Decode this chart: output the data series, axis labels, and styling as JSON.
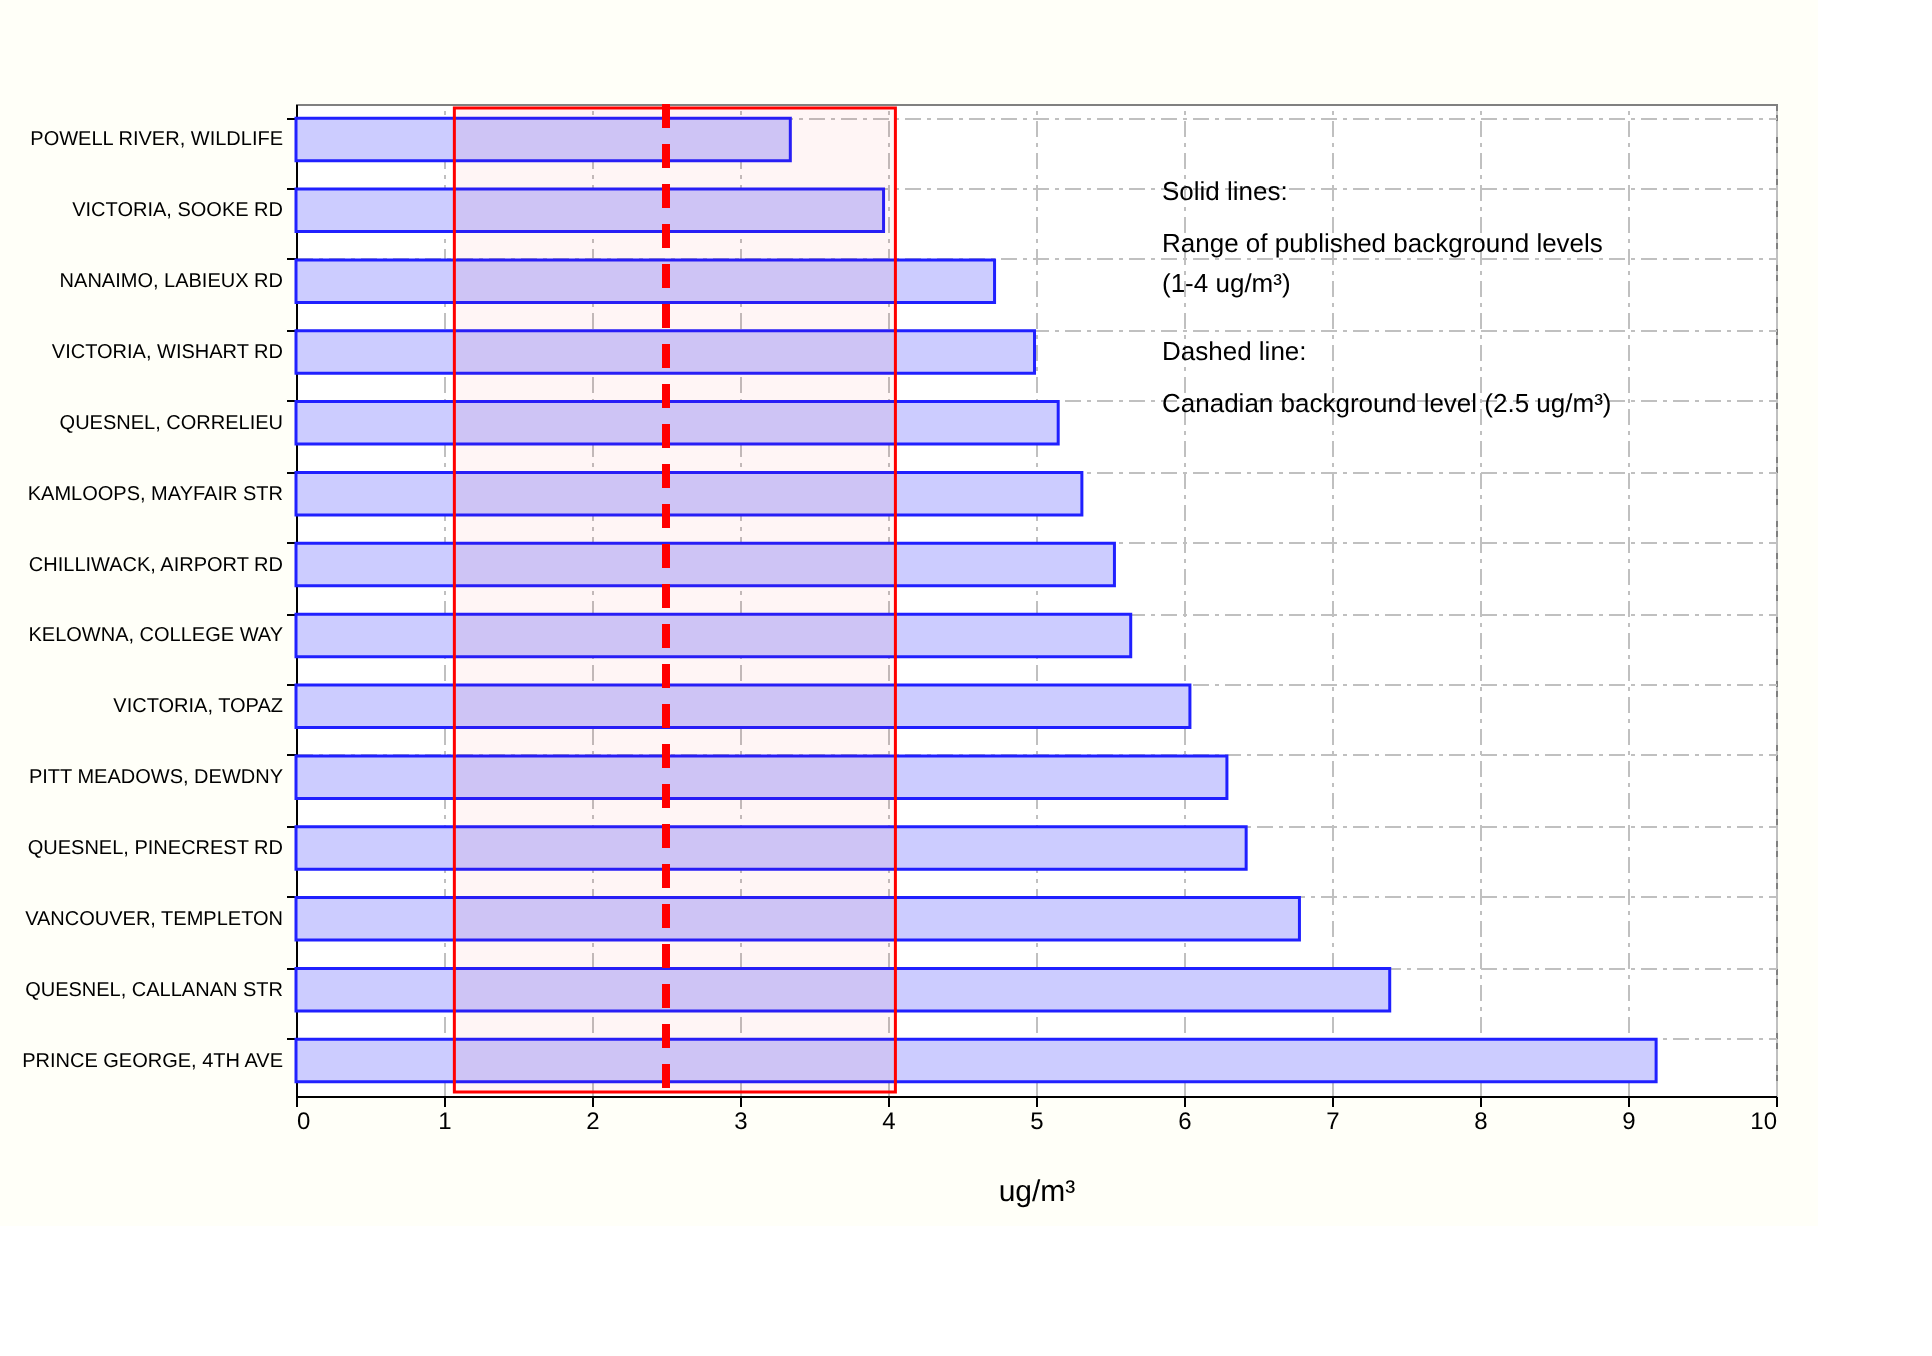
{
  "chart_data": {
    "type": "bar",
    "orientation": "horizontal",
    "xlabel": "ug/m³",
    "categories": [
      "POWELL RIVER, WILDLIFE",
      "VICTORIA, SOOKE RD",
      "NANAIMO, LABIEUX RD",
      "VICTORIA, WISHART RD",
      "QUESNEL, CORRELIEU",
      "KAMLOOPS, MAYFAIR STR",
      "CHILLIWACK, AIRPORT RD",
      "KELOWNA, COLLEGE WAY",
      "VICTORIA, TOPAZ",
      "PITT MEADOWS, DEWDNY",
      "QUESNEL, PINECREST RD",
      "VANCOUVER, TEMPLETON",
      "QUESNEL, CALLANAN STR",
      "PRINCE GEORGE, 4TH AVE"
    ],
    "values": [
      3.34,
      3.97,
      4.72,
      4.99,
      5.15,
      5.31,
      5.53,
      5.64,
      6.04,
      6.29,
      6.42,
      6.78,
      7.39,
      9.19
    ],
    "color": "#ccccff",
    "xlim": [
      0,
      10
    ],
    "xticks": [
      0,
      1,
      2,
      3,
      4,
      5,
      6,
      7,
      8,
      9,
      10
    ],
    "grid": true,
    "ref_lines": [
      {
        "axis": "x",
        "value": 2.5,
        "color": "#ff0000",
        "line_style": "dashed"
      }
    ],
    "bands": [
      {
        "axis": "x",
        "from": 1.07,
        "to": 4.05,
        "color": "#ff0000"
      }
    ],
    "annotations": [
      "Solid lines:",
      "Range of published background levels (1-4 ug/m³)",
      "Dashed line:",
      "Canadian background level (2.5 ug/m³)"
    ]
  }
}
